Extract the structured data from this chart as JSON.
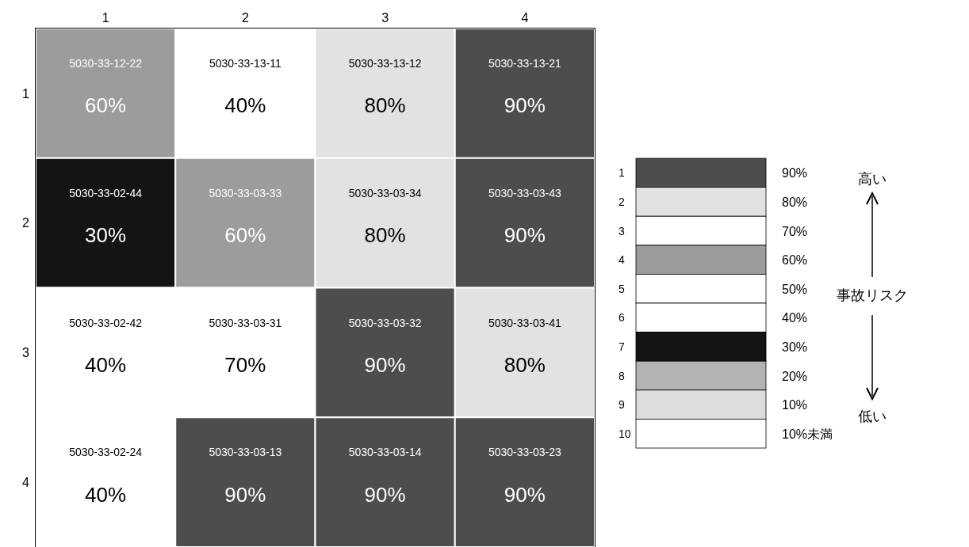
{
  "chart_data": {
    "type": "heatmap",
    "categories": [
      "1",
      "2",
      "3",
      "4"
    ],
    "y_categories": [
      "1",
      "2",
      "3",
      "4"
    ],
    "cells": [
      [
        60,
        40,
        80,
        90
      ],
      [
        30,
        60,
        80,
        90
      ],
      [
        40,
        70,
        90,
        80
      ],
      [
        40,
        90,
        90,
        90
      ]
    ],
    "cell_labels": [
      [
        "60%",
        "40%",
        "80%",
        "90%"
      ],
      [
        "30%",
        "60%",
        "80%",
        "90%"
      ],
      [
        "40%",
        "70%",
        "90%",
        "80%"
      ],
      [
        "40%",
        "90%",
        "90%",
        "90%"
      ]
    ],
    "colors": [
      "#4d4d4d",
      "#e2e2e2",
      "#ffffff",
      "#9c9c9c",
      "#ffffff",
      "#ffffff",
      "#141414",
      "#b3b3b3",
      "#dcdcdc",
      "#ffffff"
    ],
    "annotations": [
      "5030-33-12-22",
      "5030-33-13-11",
      "5030-33-13-12",
      "5030-33-13-21",
      "5030-33-02-44",
      "5030-33-03-33",
      "5030-33-03-34",
      "5030-33-03-43",
      "5030-33-02-42",
      "5030-33-03-31",
      "5030-33-03-32",
      "5030-33-03-41",
      "5030-33-02-24",
      "5030-33-03-13",
      "5030-33-03-14",
      "5030-33-03-23",
      "1",
      "2",
      "3",
      "4",
      "5",
      "6",
      "7",
      "8",
      "9",
      "10",
      "90%",
      "80%",
      "70%",
      "60%",
      "50%",
      "40%",
      "30%",
      "20%",
      "10%",
      "10%未満",
      "高い",
      "事故リスク",
      "低い"
    ]
  }
}
